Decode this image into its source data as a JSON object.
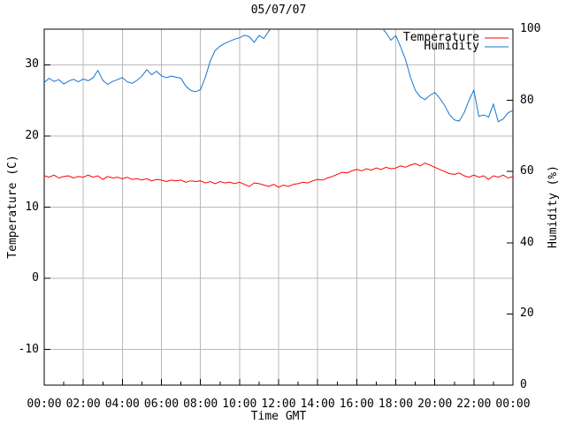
{
  "title": "05/07/07",
  "axes": {
    "x": {
      "label": "Time GMT",
      "tick_labels": [
        "00:00",
        "02:00",
        "04:00",
        "06:00",
        "08:00",
        "10:00",
        "12:00",
        "14:00",
        "16:00",
        "18:00",
        "20:00",
        "22:00",
        "00:00"
      ],
      "major_tick_every_hours": 2,
      "minor_tick_every_hours": 1
    },
    "y_left": {
      "label": "Temperature (C)",
      "range": [
        -15,
        35
      ],
      "ticks": [
        {
          "label": "30",
          "value": 30
        },
        {
          "label": "20",
          "value": 20
        },
        {
          "label": "10",
          "value": 10
        },
        {
          "label": "0",
          "value": 0
        },
        {
          "label": "-10",
          "value": -10
        }
      ]
    },
    "y_right": {
      "label": "Humidity (%)",
      "range": [
        0,
        100
      ],
      "ticks": [
        {
          "label": "100",
          "value": 100
        },
        {
          "label": "80",
          "value": 80
        },
        {
          "label": "60",
          "value": 60
        },
        {
          "label": "40",
          "value": 40
        },
        {
          "label": "20",
          "value": 20
        },
        {
          "label": "0",
          "value": 0
        }
      ]
    }
  },
  "legend": {
    "items": [
      {
        "label": "Temperature",
        "color": "#ff0000"
      },
      {
        "label": "Humidity",
        "color": "#1874cd"
      }
    ]
  },
  "colors": {
    "temperature": "#ff0000",
    "humidity": "#1874cd",
    "grid": "#b9b9b9",
    "axis": "#000000",
    "background": "#ffffff",
    "text": "#000000"
  },
  "chart_data": {
    "type": "line",
    "title": "05/07/07",
    "xlabel": "Time GMT",
    "ylabel_left": "Temperature (C)",
    "ylabel_right": "Humidity (%)",
    "xlim_hours": [
      0,
      24
    ],
    "ylim_left": [
      -15,
      35
    ],
    "ylim_right": [
      0,
      100
    ],
    "grid": true,
    "legend_position": "top-right-inside",
    "x_hours": [
      0,
      0.25,
      0.5,
      0.75,
      1,
      1.25,
      1.5,
      1.75,
      2,
      2.25,
      2.5,
      2.75,
      3,
      3.25,
      3.5,
      3.75,
      4,
      4.25,
      4.5,
      4.75,
      5,
      5.25,
      5.5,
      5.75,
      6,
      6.25,
      6.5,
      6.75,
      7,
      7.25,
      7.5,
      7.75,
      8,
      8.25,
      8.5,
      8.75,
      9,
      9.25,
      9.5,
      9.75,
      10,
      10.25,
      10.5,
      10.75,
      11,
      11.25,
      11.5,
      11.75,
      12,
      12.25,
      12.5,
      12.75,
      13,
      13.25,
      13.5,
      13.75,
      14,
      14.25,
      14.5,
      14.75,
      15,
      15.25,
      15.5,
      15.75,
      16,
      16.25,
      16.5,
      16.75,
      17,
      17.25,
      17.5,
      17.75,
      18,
      18.25,
      18.5,
      18.75,
      19,
      19.25,
      19.5,
      19.75,
      20,
      20.25,
      20.5,
      20.75,
      21,
      21.25,
      21.5,
      21.75,
      22,
      22.25,
      22.5,
      22.75,
      23,
      23.25,
      23.5,
      23.75,
      24
    ],
    "series": [
      {
        "name": "Temperature",
        "axis": "left",
        "unit": "C",
        "color": "#ff0000",
        "values": [
          14.4,
          14.2,
          14.5,
          14.1,
          14.3,
          14.4,
          14.1,
          14.3,
          14.2,
          14.5,
          14.2,
          14.4,
          13.9,
          14.3,
          14.1,
          14.2,
          14.0,
          14.2,
          13.9,
          14.0,
          13.8,
          14.0,
          13.7,
          13.9,
          13.8,
          13.6,
          13.8,
          13.7,
          13.8,
          13.5,
          13.7,
          13.6,
          13.7,
          13.4,
          13.6,
          13.3,
          13.6,
          13.4,
          13.5,
          13.3,
          13.5,
          13.2,
          12.9,
          13.4,
          13.3,
          13.1,
          12.9,
          13.2,
          12.8,
          13.1,
          12.9,
          13.2,
          13.3,
          13.5,
          13.4,
          13.7,
          13.9,
          13.8,
          14.1,
          14.3,
          14.6,
          14.9,
          14.8,
          15.1,
          15.3,
          15.1,
          15.4,
          15.2,
          15.5,
          15.3,
          15.6,
          15.4,
          15.5,
          15.8,
          15.6,
          15.9,
          16.1,
          15.8,
          16.2,
          15.9,
          15.6,
          15.3,
          15.0,
          14.7,
          14.6,
          14.8,
          14.4,
          14.2,
          14.5,
          14.2,
          14.4,
          13.9,
          14.4,
          14.2,
          14.5,
          14.1,
          14.3
        ]
      },
      {
        "name": "Humidity",
        "axis": "right",
        "unit": "%",
        "color": "#1874cd",
        "note": "trace rises above the 100% axis top and is clipped between about 11:35 and 17:20",
        "values": [
          85.0,
          86.2,
          85.3,
          85.8,
          84.6,
          85.4,
          85.9,
          85.2,
          86.0,
          85.5,
          86.3,
          88.4,
          85.6,
          84.5,
          85.3,
          85.8,
          86.4,
          85.2,
          84.8,
          85.6,
          86.8,
          88.6,
          87.2,
          88.2,
          86.9,
          86.4,
          86.8,
          86.5,
          86.2,
          84.0,
          82.8,
          82.4,
          83.0,
          86.5,
          91.0,
          94.0,
          95.2,
          96.0,
          96.6,
          97.2,
          97.6,
          98.3,
          97.9,
          96.3,
          98.2,
          97.4,
          99.5,
          100.8,
          101.2,
          101.0,
          101.3,
          100.9,
          101.2,
          101.4,
          101.1,
          101.3,
          101.0,
          101.2,
          100.8,
          101.1,
          101.3,
          100.9,
          101.2,
          101.0,
          101.3,
          101.1,
          100.9,
          101.2,
          101.0,
          100.6,
          99.0,
          96.9,
          98.2,
          95.0,
          91.5,
          86.5,
          82.8,
          81.0,
          80.2,
          81.4,
          82.2,
          80.6,
          78.6,
          76.0,
          74.5,
          74.2,
          76.5,
          80.0,
          82.9,
          75.5,
          75.9,
          75.3,
          78.9,
          74.0,
          74.8,
          76.5,
          77.2
        ]
      }
    ]
  }
}
